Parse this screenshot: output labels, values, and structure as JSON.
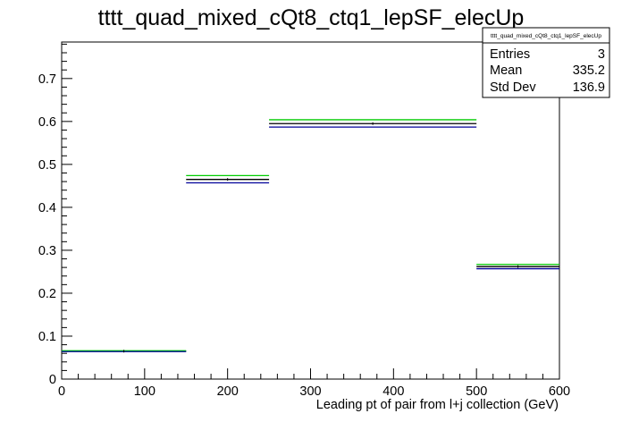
{
  "chart_data": {
    "type": "histogram",
    "title": "tttt_quad_mixed_cQt8_ctq1_lepSF_elecUp",
    "xlabel": "Leading pt of pair from l+j collection (GeV)",
    "ylabel": "",
    "xlim": [
      0,
      600
    ],
    "ylim": [
      0,
      0.785
    ],
    "x_ticks": [
      0,
      100,
      200,
      300,
      400,
      500,
      600
    ],
    "x_tick_labels": [
      "0",
      "100",
      "200",
      "300",
      "400",
      "500",
      "600"
    ],
    "y_ticks": [
      0,
      0.1,
      0.2,
      0.3,
      0.4,
      0.5,
      0.6,
      0.7
    ],
    "y_tick_labels": [
      "0",
      "0.1",
      "0.2",
      "0.3",
      "0.4",
      "0.5",
      "0.6",
      "0.7"
    ],
    "grid": false,
    "bins": [
      {
        "low": 0,
        "high": 150
      },
      {
        "low": 150,
        "high": 250
      },
      {
        "low": 250,
        "high": 500
      },
      {
        "low": 500,
        "high": 600
      }
    ],
    "series": [
      {
        "color": "#000000",
        "values": [
          0.065,
          0.465,
          0.595,
          0.262
        ]
      },
      {
        "color": "#00cc00",
        "values": [
          0.066,
          0.474,
          0.604,
          0.267
        ]
      },
      {
        "color": "#000099",
        "values": [
          0.064,
          0.457,
          0.587,
          0.257
        ]
      }
    ],
    "stats_box": {
      "title": "tttt_quad_mixed_cQt8_ctq1_lepSF_elecUp",
      "rows": [
        {
          "label": "Entries",
          "value": "3"
        },
        {
          "label": "Mean",
          "value": "335.2"
        },
        {
          "label": "Std Dev",
          "value": "136.9"
        }
      ]
    }
  }
}
